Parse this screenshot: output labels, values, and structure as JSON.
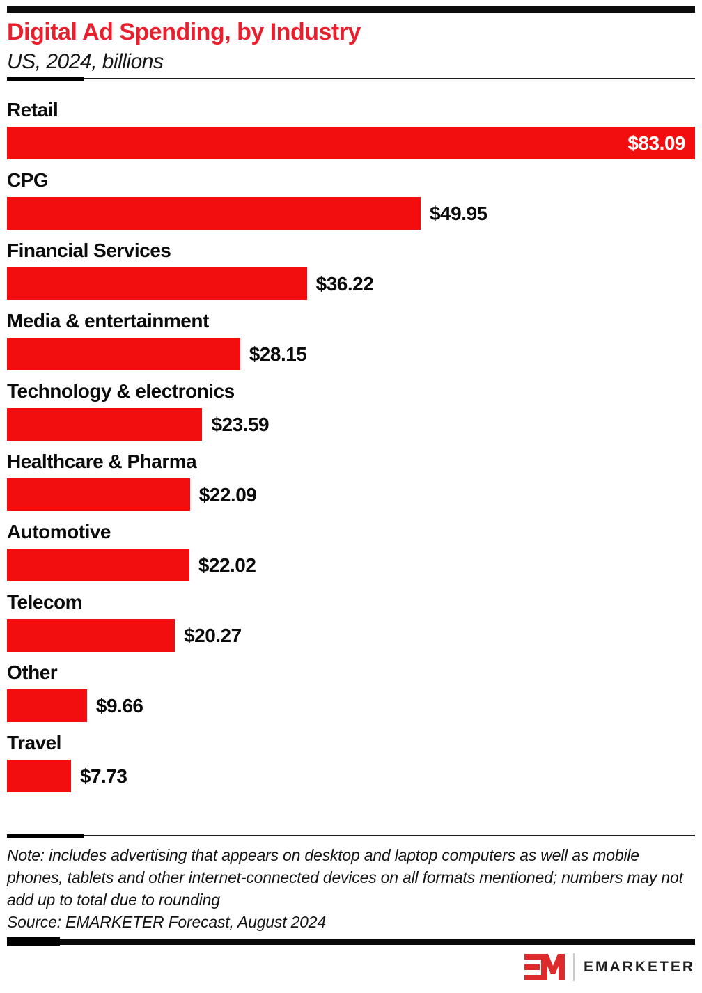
{
  "header": {
    "title": "Digital Ad Spending, by Industry",
    "subtitle": "US, 2024, billions"
  },
  "chart_data": {
    "type": "bar",
    "orientation": "horizontal",
    "title": "Digital Ad Spending, by Industry",
    "subtitle": "US, 2024, billions",
    "unit": "US$ billions",
    "categories": [
      "Retail",
      "CPG",
      "Financial Services",
      "Media & entertainment",
      "Technology & electronics",
      "Healthcare & Pharma",
      "Automotive",
      "Telecom",
      "Other",
      "Travel"
    ],
    "values": [
      83.09,
      49.95,
      36.22,
      28.15,
      23.59,
      22.09,
      22.02,
      20.27,
      9.66,
      7.73
    ],
    "value_labels": [
      "$83.09",
      "$49.95",
      "$36.22",
      "$28.15",
      "$23.59",
      "$22.09",
      "$22.02",
      "$20.27",
      "$9.66",
      "$7.73"
    ],
    "value_label_inside_bar": [
      true,
      false,
      false,
      false,
      false,
      false,
      false,
      false,
      false,
      false
    ],
    "xlim": [
      0,
      83.09
    ],
    "grid": false,
    "legend": false,
    "bar_color": "#f20d0f"
  },
  "footer": {
    "note": "Note: includes advertising that appears on desktop and laptop computers as well as mobile phones, tablets and other internet-connected devices on all formats mentioned; numbers may not add up to total due to rounding",
    "source": "Source: EMARKETER Forecast, August 2024",
    "logo": {
      "monogram": "EM",
      "wordmark": "EMARKETER"
    }
  },
  "colors": {
    "bar_red": "#f20d0f",
    "title_red": "#e8202e",
    "accent_black": "#0d0d0d",
    "logo_red": "#dc2a2d"
  }
}
